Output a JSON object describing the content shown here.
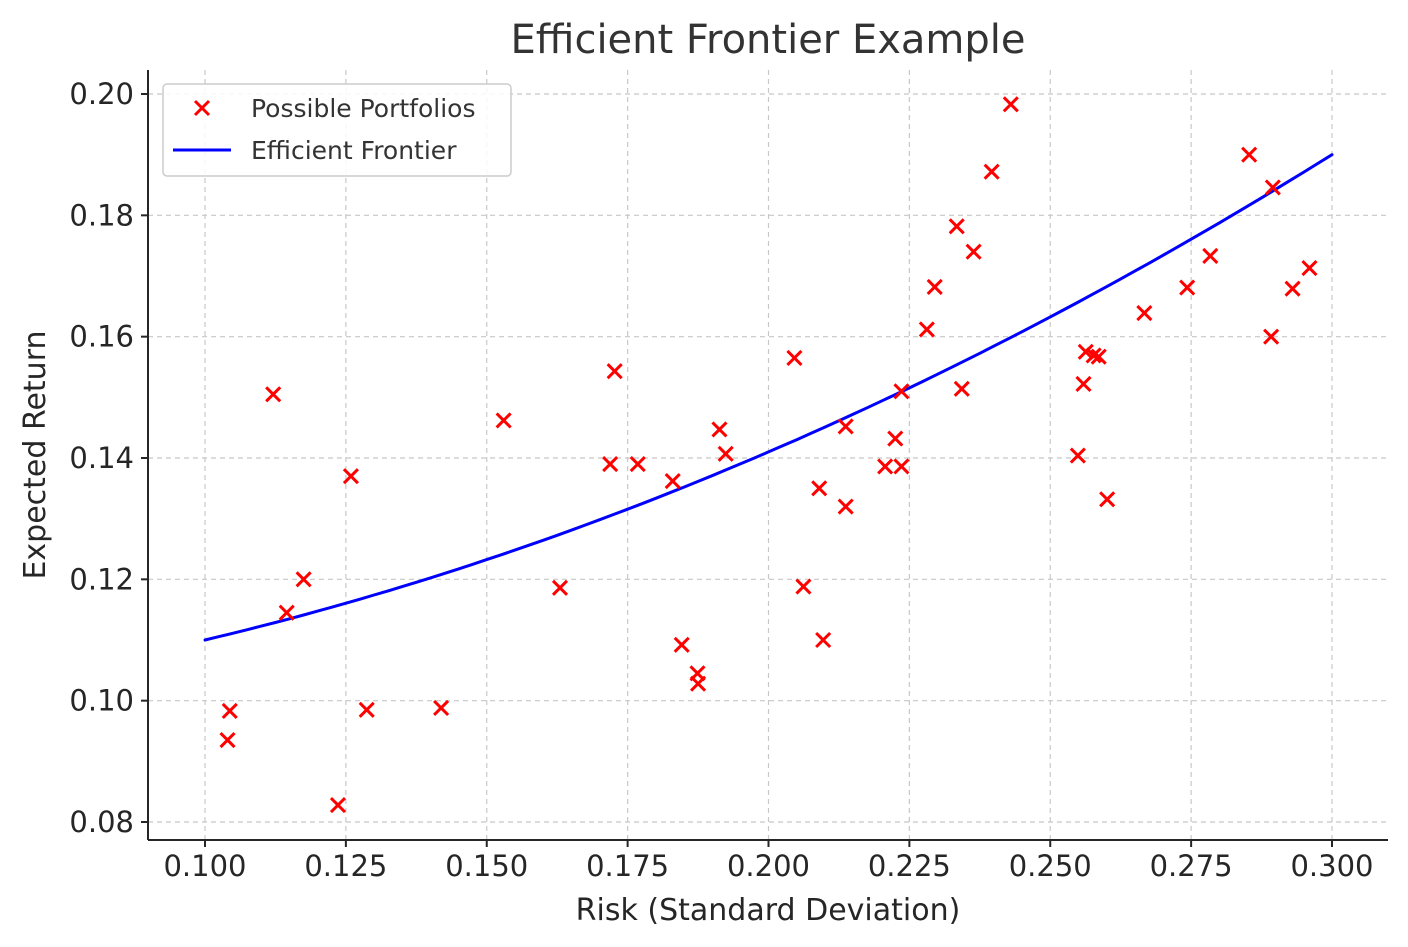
{
  "chart_data": {
    "type": "scatter",
    "title": "Efficient Frontier Example",
    "xlabel": "Risk (Standard Deviation)",
    "ylabel": "Expected Return",
    "xlim": [
      0.09,
      0.31
    ],
    "ylim": [
      0.077,
      0.204
    ],
    "x_ticks": [
      "0.100",
      "0.125",
      "0.150",
      "0.175",
      "0.200",
      "0.225",
      "0.250",
      "0.275",
      "0.300"
    ],
    "y_ticks": [
      "0.08",
      "0.10",
      "0.12",
      "0.14",
      "0.16",
      "0.18",
      "0.20"
    ],
    "grid": true,
    "legend_position": "top-left",
    "series": [
      {
        "name": "Possible Portfolios",
        "kind": "scatter",
        "marker": "x",
        "color": "#ff0000",
        "points": [
          [
            0.104,
            0.0935
          ],
          [
            0.1044,
            0.0983
          ],
          [
            0.1121,
            0.1505
          ],
          [
            0.1145,
            0.1145
          ],
          [
            0.1175,
            0.12
          ],
          [
            0.1236,
            0.0828
          ],
          [
            0.1259,
            0.137
          ],
          [
            0.1287,
            0.0985
          ],
          [
            0.1419,
            0.0988
          ],
          [
            0.153,
            0.1462
          ],
          [
            0.163,
            0.1186
          ],
          [
            0.1719,
            0.139
          ],
          [
            0.1727,
            0.1543
          ],
          [
            0.1768,
            0.139
          ],
          [
            0.183,
            0.1362
          ],
          [
            0.1846,
            0.1092
          ],
          [
            0.1874,
            0.1045
          ],
          [
            0.1875,
            0.1028
          ],
          [
            0.1913,
            0.1447
          ],
          [
            0.1924,
            0.1407
          ],
          [
            0.2046,
            0.1565
          ],
          [
            0.2062,
            0.1188
          ],
          [
            0.209,
            0.135
          ],
          [
            0.2097,
            0.11
          ],
          [
            0.2137,
            0.1452
          ],
          [
            0.2137,
            0.132
          ],
          [
            0.2207,
            0.1386
          ],
          [
            0.2225,
            0.1432
          ],
          [
            0.2236,
            0.151
          ],
          [
            0.2236,
            0.1386
          ],
          [
            0.2281,
            0.1612
          ],
          [
            0.2295,
            0.1682
          ],
          [
            0.2334,
            0.1782
          ],
          [
            0.2343,
            0.1514
          ],
          [
            0.2364,
            0.174
          ],
          [
            0.2396,
            0.1872
          ],
          [
            0.243,
            0.1983
          ],
          [
            0.2549,
            0.1404
          ],
          [
            0.2559,
            0.1522
          ],
          [
            0.2563,
            0.1575
          ],
          [
            0.2577,
            0.1569
          ],
          [
            0.2586,
            0.1567
          ],
          [
            0.2601,
            0.1332
          ],
          [
            0.2667,
            0.1639
          ],
          [
            0.2743,
            0.1681
          ],
          [
            0.2784,
            0.1733
          ],
          [
            0.2853,
            0.19
          ],
          [
            0.2892,
            0.16
          ],
          [
            0.2895,
            0.1846
          ],
          [
            0.293,
            0.1679
          ],
          [
            0.296,
            0.1713
          ]
        ]
      },
      {
        "name": "Efficient Frontier",
        "kind": "line",
        "color": "#0000ff",
        "curve": {
          "x_start": 0.1,
          "x_end": 0.3,
          "y_start": 0.11,
          "y_end": 0.19,
          "shape": "quadratic"
        }
      }
    ]
  }
}
